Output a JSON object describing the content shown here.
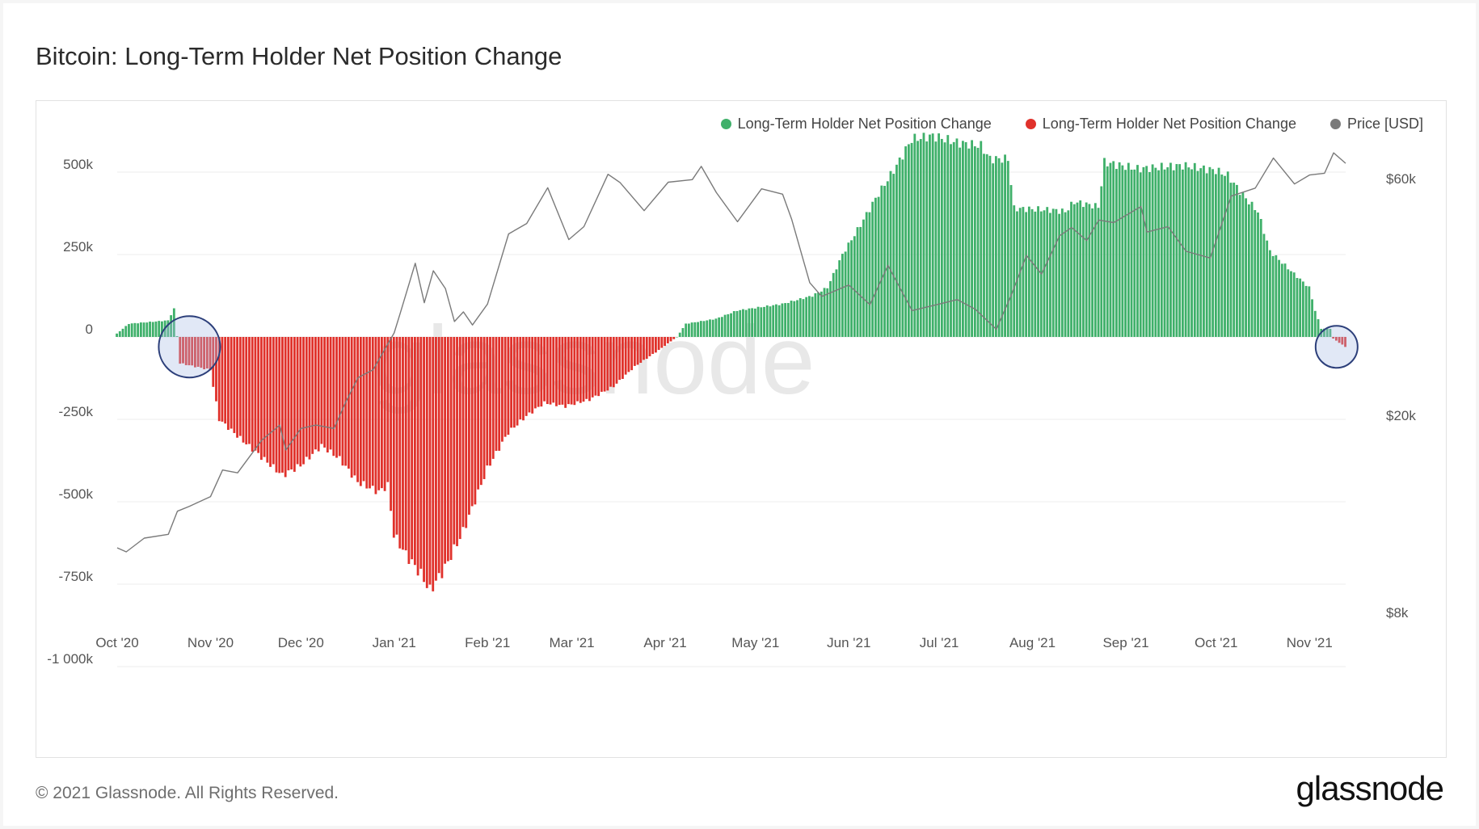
{
  "title": "Bitcoin: Long-Term Holder Net Position Change",
  "footer": "© 2021 Glassnode. All Rights Reserved.",
  "brand": "glassnode",
  "watermark": "glassnode",
  "legend": [
    {
      "label": "Long-Term Holder Net Position Change",
      "color": "#3fb06a"
    },
    {
      "label": "Long-Term Holder Net Position Change",
      "color": "#e0312b"
    },
    {
      "label": "Price [USD]",
      "color": "#7a7a7a"
    }
  ],
  "chart_data": {
    "type": "bar",
    "title": "Bitcoin: Long-Term Holder Net Position Change",
    "x_range": [
      "2020-10-01",
      "2021-11-13"
    ],
    "x_ticks": [
      "Oct '20",
      "Nov '20",
      "Dec '20",
      "Jan '21",
      "Feb '21",
      "Mar '21",
      "Apr '21",
      "May '21",
      "Jun '21",
      "Jul '21",
      "Aug '21",
      "Sep '21",
      "Oct '21",
      "Nov '21"
    ],
    "y_left": {
      "ticks": [
        500000,
        250000,
        0,
        -250000,
        -500000,
        -750000,
        -1000000
      ],
      "tick_labels": [
        "500k",
        "250k",
        "0",
        "-250k",
        "-500k",
        "-750k",
        "-1 000k"
      ],
      "range": [
        -1000000,
        770000
      ]
    },
    "y_right": {
      "scale": "log",
      "ticks": [
        60000,
        20000,
        8000
      ],
      "tick_labels": [
        "$60k",
        "$20k",
        "$8k"
      ]
    },
    "grid": true,
    "legend_position": "top-right",
    "colors": {
      "positive": "#3fb06a",
      "negative": "#e0312b",
      "price": "#7a7a7a"
    },
    "net_position_change_keyframes": [
      {
        "date": "2020-10-01",
        "value": 10000
      },
      {
        "date": "2020-10-05",
        "value": 40000
      },
      {
        "date": "2020-10-18",
        "value": 50000
      },
      {
        "date": "2020-10-20",
        "value": 85000
      },
      {
        "date": "2020-10-22",
        "value": -80000
      },
      {
        "date": "2020-10-27",
        "value": -90000
      },
      {
        "date": "2020-11-01",
        "value": -100000
      },
      {
        "date": "2020-11-04",
        "value": -250000
      },
      {
        "date": "2020-11-10",
        "value": -300000
      },
      {
        "date": "2020-11-20",
        "value": -380000
      },
      {
        "date": "2020-11-25",
        "value": -420000
      },
      {
        "date": "2020-12-01",
        "value": -390000
      },
      {
        "date": "2020-12-08",
        "value": -330000
      },
      {
        "date": "2020-12-14",
        "value": -370000
      },
      {
        "date": "2020-12-20",
        "value": -440000
      },
      {
        "date": "2020-12-27",
        "value": -470000
      },
      {
        "date": "2020-12-30",
        "value": -450000
      },
      {
        "date": "2021-01-01",
        "value": -600000
      },
      {
        "date": "2021-01-05",
        "value": -660000
      },
      {
        "date": "2021-01-10",
        "value": -720000
      },
      {
        "date": "2021-01-13",
        "value": -770000
      },
      {
        "date": "2021-01-18",
        "value": -700000
      },
      {
        "date": "2021-01-24",
        "value": -590000
      },
      {
        "date": "2021-01-27",
        "value": -520000
      },
      {
        "date": "2021-02-01",
        "value": -400000
      },
      {
        "date": "2021-02-08",
        "value": -290000
      },
      {
        "date": "2021-02-14",
        "value": -240000
      },
      {
        "date": "2021-02-20",
        "value": -200000
      },
      {
        "date": "2021-02-27",
        "value": -210000
      },
      {
        "date": "2021-03-07",
        "value": -190000
      },
      {
        "date": "2021-03-15",
        "value": -150000
      },
      {
        "date": "2021-03-22",
        "value": -90000
      },
      {
        "date": "2021-03-30",
        "value": -40000
      },
      {
        "date": "2021-04-05",
        "value": 0
      },
      {
        "date": "2021-04-08",
        "value": 40000
      },
      {
        "date": "2021-04-18",
        "value": 55000
      },
      {
        "date": "2021-04-25",
        "value": 80000
      },
      {
        "date": "2021-05-10",
        "value": 100000
      },
      {
        "date": "2021-05-20",
        "value": 125000
      },
      {
        "date": "2021-05-25",
        "value": 150000
      },
      {
        "date": "2021-05-30",
        "value": 250000
      },
      {
        "date": "2021-06-05",
        "value": 340000
      },
      {
        "date": "2021-06-10",
        "value": 420000
      },
      {
        "date": "2021-06-17",
        "value": 520000
      },
      {
        "date": "2021-06-22",
        "value": 600000
      },
      {
        "date": "2021-06-29",
        "value": 610000
      },
      {
        "date": "2021-07-07",
        "value": 590000
      },
      {
        "date": "2021-07-15",
        "value": 580000
      },
      {
        "date": "2021-07-18",
        "value": 540000
      },
      {
        "date": "2021-07-24",
        "value": 540000
      },
      {
        "date": "2021-07-26",
        "value": 390000
      },
      {
        "date": "2021-08-08",
        "value": 385000
      },
      {
        "date": "2021-08-12",
        "value": 380000
      },
      {
        "date": "2021-08-15",
        "value": 410000
      },
      {
        "date": "2021-08-23",
        "value": 395000
      },
      {
        "date": "2021-08-25",
        "value": 530000
      },
      {
        "date": "2021-09-05",
        "value": 510000
      },
      {
        "date": "2021-09-20",
        "value": 520000
      },
      {
        "date": "2021-10-01",
        "value": 505000
      },
      {
        "date": "2021-10-05",
        "value": 490000
      },
      {
        "date": "2021-10-10",
        "value": 430000
      },
      {
        "date": "2021-10-15",
        "value": 380000
      },
      {
        "date": "2021-10-19",
        "value": 260000
      },
      {
        "date": "2021-10-26",
        "value": 200000
      },
      {
        "date": "2021-11-01",
        "value": 150000
      },
      {
        "date": "2021-11-03",
        "value": 80000
      },
      {
        "date": "2021-11-05",
        "value": 25000
      },
      {
        "date": "2021-11-08",
        "value": 25000
      },
      {
        "date": "2021-11-09",
        "value": -5000
      },
      {
        "date": "2021-11-13",
        "value": -30000
      }
    ],
    "price_usd": [
      {
        "date": "2020-10-01",
        "value": 10800
      },
      {
        "date": "2020-10-04",
        "value": 10600
      },
      {
        "date": "2020-10-10",
        "value": 11300
      },
      {
        "date": "2020-10-18",
        "value": 11500
      },
      {
        "date": "2020-10-21",
        "value": 12800
      },
      {
        "date": "2020-10-25",
        "value": 13100
      },
      {
        "date": "2020-11-01",
        "value": 13700
      },
      {
        "date": "2020-11-05",
        "value": 15500
      },
      {
        "date": "2020-11-10",
        "value": 15300
      },
      {
        "date": "2020-11-18",
        "value": 17800
      },
      {
        "date": "2020-11-24",
        "value": 19100
      },
      {
        "date": "2020-11-26",
        "value": 17000
      },
      {
        "date": "2020-12-01",
        "value": 18800
      },
      {
        "date": "2020-12-06",
        "value": 19100
      },
      {
        "date": "2020-12-12",
        "value": 18800
      },
      {
        "date": "2020-12-16",
        "value": 21300
      },
      {
        "date": "2020-12-20",
        "value": 23800
      },
      {
        "date": "2020-12-25",
        "value": 24700
      },
      {
        "date": "2021-01-01",
        "value": 29300
      },
      {
        "date": "2021-01-03",
        "value": 32100
      },
      {
        "date": "2021-01-08",
        "value": 40500
      },
      {
        "date": "2021-01-11",
        "value": 33700
      },
      {
        "date": "2021-01-14",
        "value": 39100
      },
      {
        "date": "2021-01-18",
        "value": 36000
      },
      {
        "date": "2021-01-21",
        "value": 30900
      },
      {
        "date": "2021-01-24",
        "value": 32300
      },
      {
        "date": "2021-01-27",
        "value": 30400
      },
      {
        "date": "2021-02-01",
        "value": 33500
      },
      {
        "date": "2021-02-08",
        "value": 46400
      },
      {
        "date": "2021-02-14",
        "value": 48700
      },
      {
        "date": "2021-02-21",
        "value": 57500
      },
      {
        "date": "2021-02-28",
        "value": 45200
      },
      {
        "date": "2021-03-05",
        "value": 48000
      },
      {
        "date": "2021-03-13",
        "value": 61200
      },
      {
        "date": "2021-03-17",
        "value": 58900
      },
      {
        "date": "2021-03-25",
        "value": 51700
      },
      {
        "date": "2021-04-02",
        "value": 59000
      },
      {
        "date": "2021-04-10",
        "value": 59700
      },
      {
        "date": "2021-04-13",
        "value": 63500
      },
      {
        "date": "2021-04-18",
        "value": 56200
      },
      {
        "date": "2021-04-25",
        "value": 49100
      },
      {
        "date": "2021-05-03",
        "value": 57200
      },
      {
        "date": "2021-05-10",
        "value": 55800
      },
      {
        "date": "2021-05-13",
        "value": 49700
      },
      {
        "date": "2021-05-19",
        "value": 37000
      },
      {
        "date": "2021-05-23",
        "value": 34700
      },
      {
        "date": "2021-06-01",
        "value": 36600
      },
      {
        "date": "2021-06-08",
        "value": 33400
      },
      {
        "date": "2021-06-14",
        "value": 40100
      },
      {
        "date": "2021-06-22",
        "value": 32500
      },
      {
        "date": "2021-07-01",
        "value": 33500
      },
      {
        "date": "2021-07-07",
        "value": 34200
      },
      {
        "date": "2021-07-13",
        "value": 32700
      },
      {
        "date": "2021-07-20",
        "value": 29800
      },
      {
        "date": "2021-07-25",
        "value": 35000
      },
      {
        "date": "2021-07-30",
        "value": 42000
      },
      {
        "date": "2021-08-04",
        "value": 38500
      },
      {
        "date": "2021-08-10",
        "value": 46000
      },
      {
        "date": "2021-08-14",
        "value": 47800
      },
      {
        "date": "2021-08-19",
        "value": 45000
      },
      {
        "date": "2021-08-23",
        "value": 49500
      },
      {
        "date": "2021-08-28",
        "value": 48900
      },
      {
        "date": "2021-09-06",
        "value": 52700
      },
      {
        "date": "2021-09-08",
        "value": 46800
      },
      {
        "date": "2021-09-15",
        "value": 48000
      },
      {
        "date": "2021-09-21",
        "value": 42800
      },
      {
        "date": "2021-09-29",
        "value": 41500
      },
      {
        "date": "2021-10-06",
        "value": 55300
      },
      {
        "date": "2021-10-14",
        "value": 57400
      },
      {
        "date": "2021-10-20",
        "value": 66000
      },
      {
        "date": "2021-10-27",
        "value": 58500
      },
      {
        "date": "2021-11-01",
        "value": 61000
      },
      {
        "date": "2021-11-06",
        "value": 61500
      },
      {
        "date": "2021-11-09",
        "value": 67600
      },
      {
        "date": "2021-11-13",
        "value": 64400
      }
    ]
  }
}
